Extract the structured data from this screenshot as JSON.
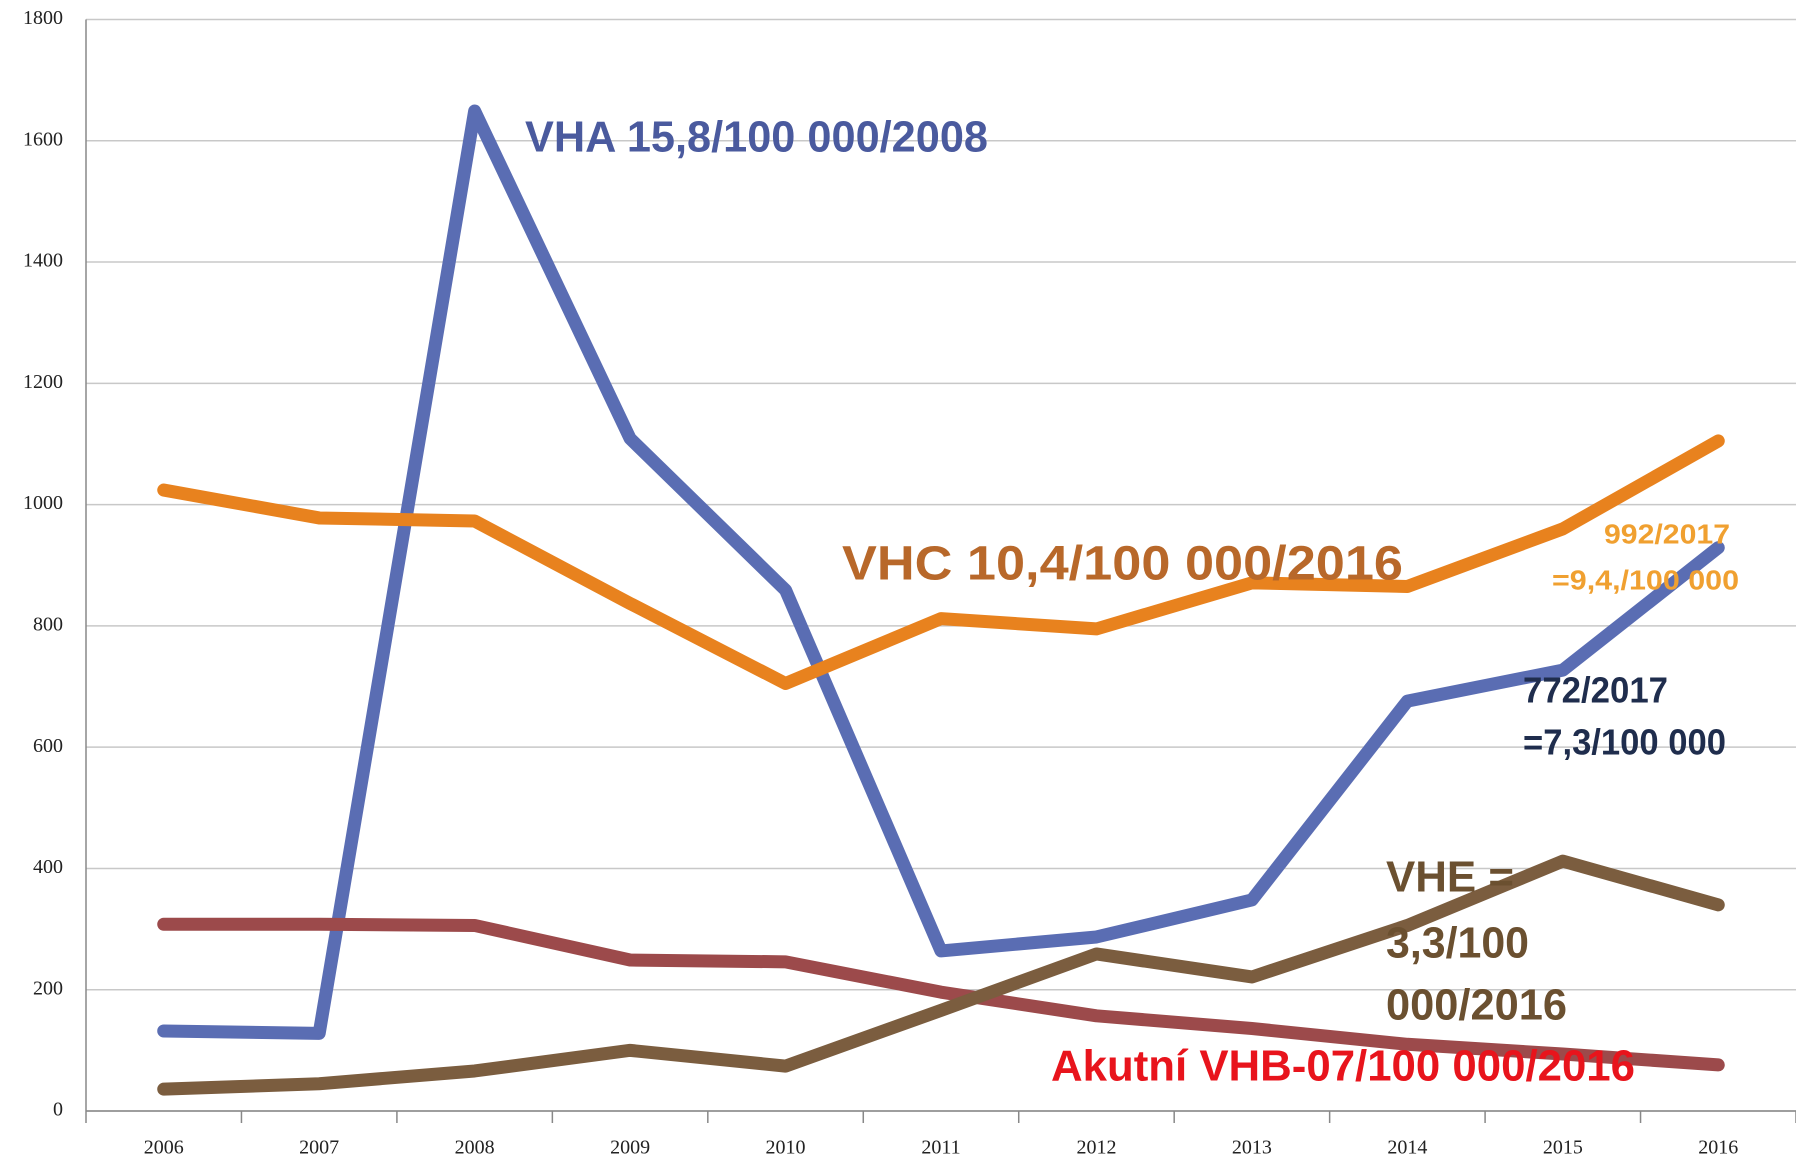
{
  "chart_data": {
    "type": "line",
    "categories": [
      "2006",
      "2007",
      "2008",
      "2009",
      "2010",
      "2011",
      "2012",
      "2013",
      "2014",
      "2015",
      "2016"
    ],
    "series": [
      {
        "color": "#5a6db3",
        "values": [
          132,
          128,
          1649,
          1109,
          859,
          264,
          287,
          348,
          676,
          727,
          929
        ]
      },
      {
        "color": "#e8821e",
        "values": [
          1024,
          978,
          973,
          837,
          705,
          812,
          795,
          871,
          865,
          960,
          1105
        ]
      },
      {
        "color": "#9c4a4b",
        "values": [
          308,
          308,
          306,
          249,
          246,
          196,
          157,
          136,
          110,
          94,
          76
        ]
      },
      {
        "color": "#7b5d3f",
        "values": [
          36,
          45,
          66,
          100,
          74,
          166,
          259,
          221,
          306,
          412,
          340
        ]
      }
    ],
    "annotations": [
      "VHA 15,8/100 000/2008",
      "VHC 10,4/100 000/2016",
      "992/2017",
      "=9,4,/100 000",
      "772/2017",
      "=7,3/100 000",
      "VHE =",
      "3,3/100",
      "000/2016",
      "Akutní VHB-07/100 000/2016"
    ],
    "ylim": [
      0,
      1800
    ],
    "yticks": [
      0,
      200,
      400,
      600,
      800,
      1000,
      1200,
      1400,
      1600,
      1800
    ],
    "grid": true
  }
}
